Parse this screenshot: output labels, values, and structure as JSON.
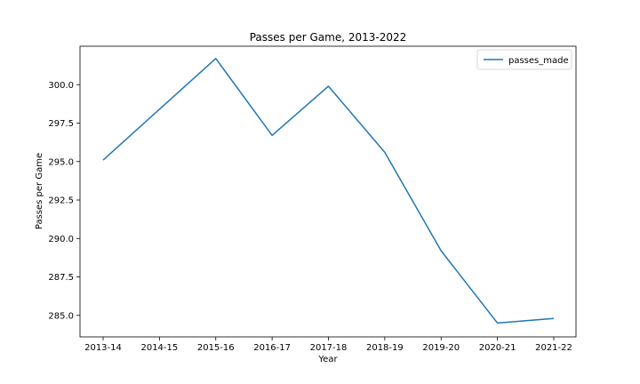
{
  "chart_data": {
    "type": "line",
    "title": "Passes per Game, 2013-2022",
    "xlabel": "Year",
    "ylabel": "Passes per Game",
    "categories": [
      "2013-14",
      "2014-15",
      "2015-16",
      "2016-17",
      "2017-18",
      "2018-19",
      "2019-20",
      "2020-21",
      "2021-22"
    ],
    "series": [
      {
        "name": "passes_made",
        "color": "#1f77b4",
        "values": [
          295.1,
          298.4,
          301.7,
          296.7,
          299.9,
          295.6,
          289.2,
          284.5,
          284.8
        ]
      }
    ],
    "ylim": [
      283.6,
      302.5
    ],
    "yticks": [
      "285.0",
      "287.5",
      "290.0",
      "292.5",
      "295.0",
      "297.5",
      "300.0"
    ],
    "grid": false,
    "legend_position": "top-right"
  }
}
